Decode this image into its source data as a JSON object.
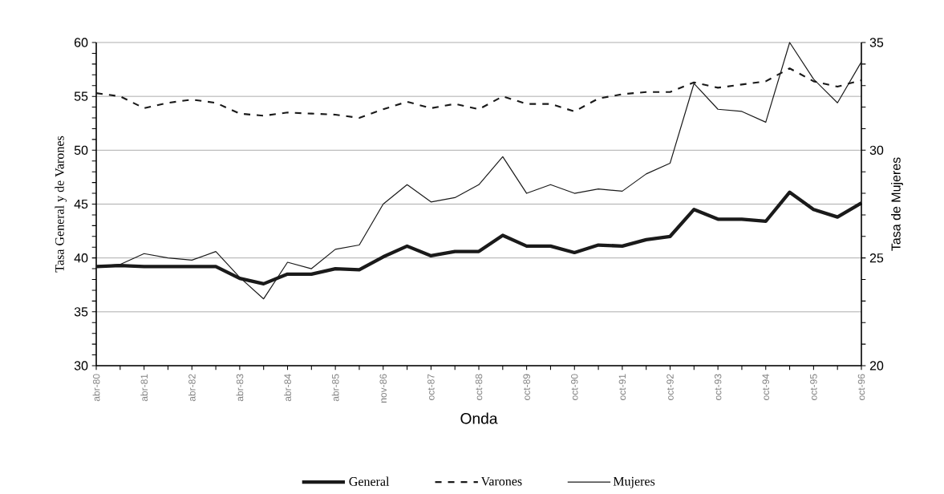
{
  "chart_data": {
    "type": "line",
    "xlabel": "Onda",
    "ylabel": "Tasa General y de Varones",
    "y2label": "Tasa de Mujeres",
    "categories": [
      "abr-80",
      null,
      "abr-81",
      null,
      "abr-82",
      null,
      "abr-83",
      null,
      "abr-84",
      null,
      "abr-85",
      null,
      "nov-86",
      null,
      "oct-87",
      null,
      "oct-88",
      null,
      "oct-89",
      null,
      "oct-90",
      null,
      "oct-91",
      null,
      "oct-92",
      null,
      "oct-93",
      null,
      "oct-94",
      null,
      "oct-95",
      null,
      "oct-96"
    ],
    "series": [
      {
        "name": "General",
        "color": "#1a1a1a",
        "line_style": "solid",
        "values": [
          39.2,
          39.3,
          39.2,
          39.2,
          39.2,
          39.2,
          38.1,
          37.6,
          38.5,
          38.5,
          39.0,
          38.9,
          40.1,
          41.1,
          40.2,
          40.6,
          40.6,
          42.1,
          41.1,
          41.1,
          40.5,
          41.2,
          41.1,
          41.7,
          42.0,
          44.5,
          43.6,
          43.6,
          43.4,
          46.1,
          44.5,
          43.8,
          45.1
        ]
      },
      {
        "name": "Varones",
        "color": "#1a1a1a",
        "line_style": "dashed",
        "values": [
          55.3,
          55.0,
          53.9,
          54.4,
          54.7,
          54.4,
          53.4,
          53.2,
          53.5,
          53.4,
          53.3,
          53.0,
          53.8,
          54.5,
          53.9,
          54.3,
          53.8,
          55.0,
          54.3,
          54.3,
          53.6,
          54.8,
          55.2,
          55.4,
          55.4,
          56.3,
          55.8,
          56.1,
          56.4,
          57.6,
          56.4,
          55.9,
          56.5
        ]
      },
      {
        "name": "Mujeres",
        "color": "#1a1a1a",
        "line_style": "solid",
        "axis": "y2",
        "values": [
          24.6,
          24.7,
          25.2,
          25.0,
          24.9,
          25.3,
          24.1,
          23.1,
          24.8,
          24.5,
          25.4,
          25.6,
          27.5,
          28.4,
          27.6,
          27.8,
          28.4,
          29.7,
          28.0,
          28.4,
          28.0,
          28.2,
          28.1,
          28.9,
          29.4,
          33.1,
          31.9,
          31.8,
          31.3,
          35.0,
          33.3,
          32.2,
          34.1
        ]
      }
    ],
    "ylim": [
      30,
      60
    ],
    "yticks": [
      30,
      35,
      40,
      45,
      50,
      55,
      60
    ],
    "y2lim": [
      20,
      35
    ],
    "y2ticks": [
      20,
      25,
      30,
      35
    ],
    "grid": "y",
    "legend": "bottom",
    "marker": "none"
  }
}
